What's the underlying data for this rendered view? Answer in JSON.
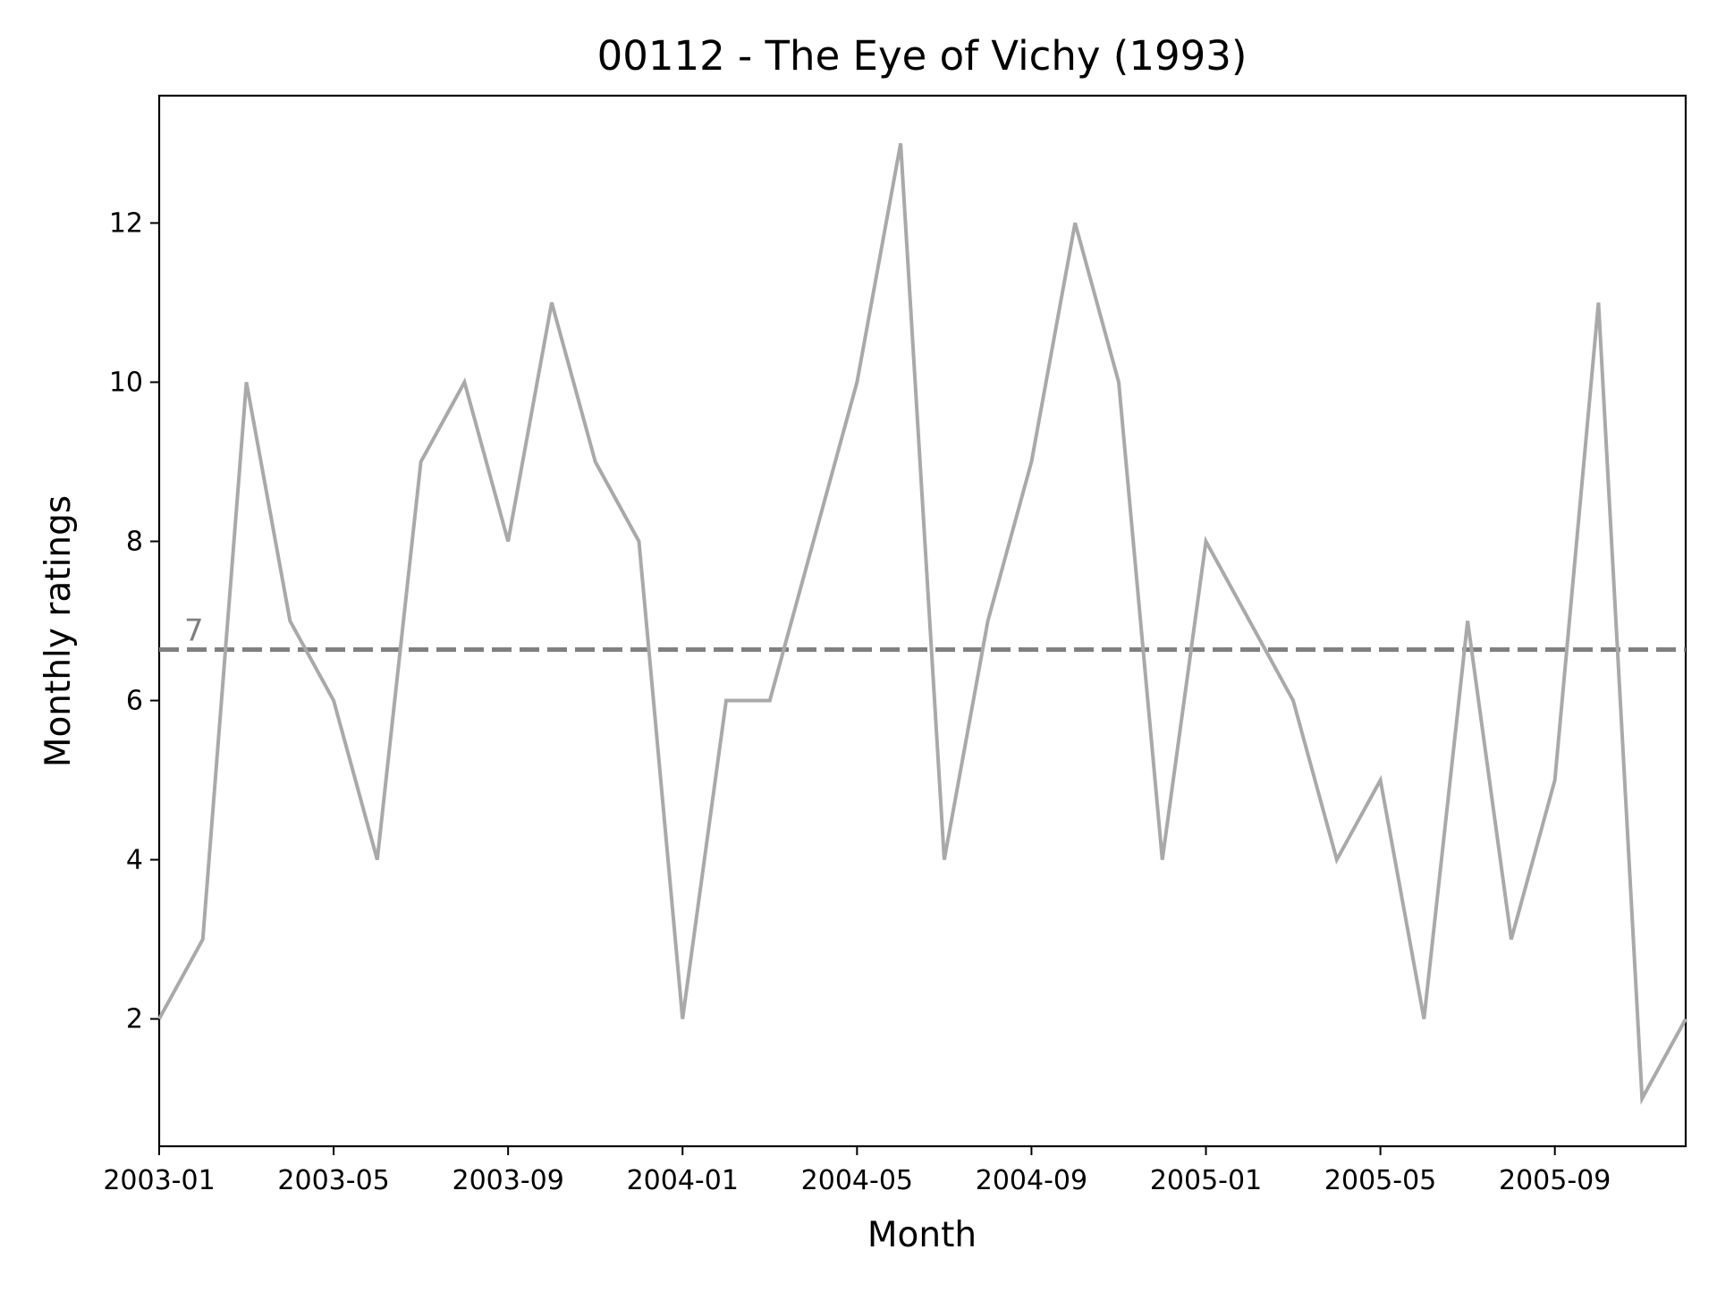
{
  "chart_data": {
    "type": "line",
    "title": "00112 - The Eye of Vichy (1993)",
    "xlabel": "Month",
    "ylabel": "Monthly ratings",
    "x": [
      "2003-01",
      "2003-02",
      "2003-03",
      "2003-04",
      "2003-05",
      "2003-06",
      "2003-07",
      "2003-08",
      "2003-09",
      "2003-10",
      "2003-11",
      "2003-12",
      "2004-01",
      "2004-02",
      "2004-03",
      "2004-04",
      "2004-05",
      "2004-06",
      "2004-07",
      "2004-08",
      "2004-09",
      "2004-10",
      "2004-11",
      "2004-12",
      "2005-01",
      "2005-02",
      "2005-03",
      "2005-04",
      "2005-05",
      "2005-06",
      "2005-07",
      "2005-08",
      "2005-09",
      "2005-10",
      "2005-11",
      "2005-12"
    ],
    "series": [
      {
        "values": [
          2,
          3,
          10,
          7,
          6,
          4,
          9,
          10,
          8,
          11,
          9,
          8,
          2,
          6,
          6,
          8,
          10,
          13,
          4,
          7,
          9,
          12,
          10,
          4,
          8,
          7,
          6,
          4,
          5,
          2,
          7,
          3,
          5,
          11,
          1,
          2
        ],
        "color": "#a9a9a9"
      }
    ],
    "reference_line": {
      "value": 6.64,
      "label": "7",
      "style": "dashed",
      "color": "#808080"
    },
    "x_ticks": [
      "2003-01",
      "2003-05",
      "2003-09",
      "2004-01",
      "2004-05",
      "2004-09",
      "2005-01",
      "2005-05",
      "2005-09"
    ],
    "y_ticks": [
      2,
      4,
      6,
      8,
      10,
      12
    ],
    "ylim": [
      0.4,
      13.6
    ],
    "xlim": [
      "2003-01",
      "2005-12"
    ],
    "grid": false
  }
}
